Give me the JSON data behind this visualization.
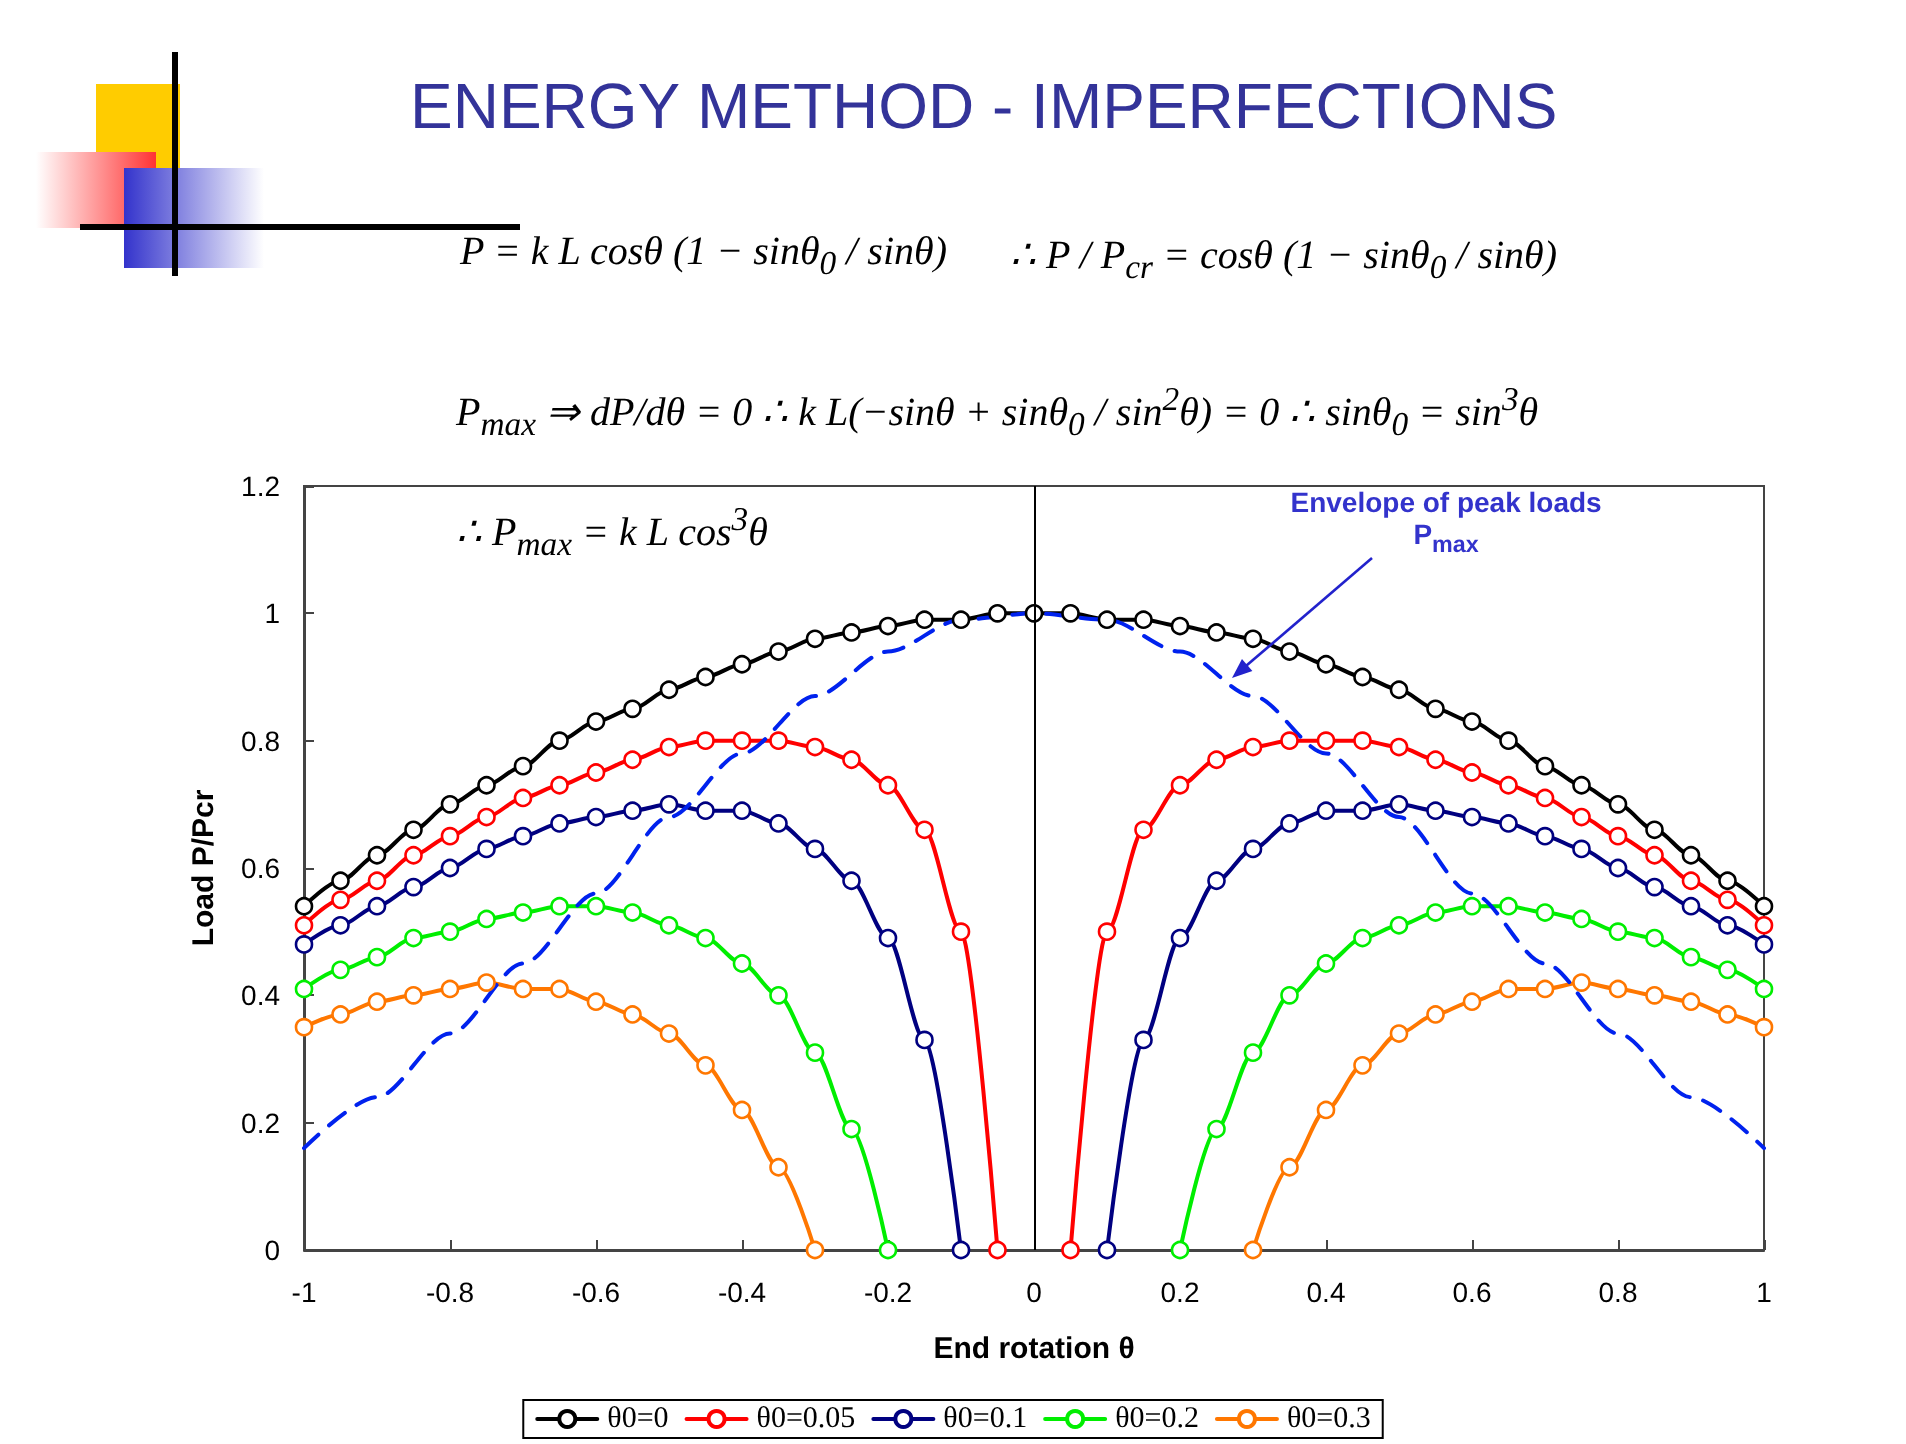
{
  "chart_data": {
    "type": "line",
    "title": "ENERGY METHOD - IMPERFECTIONS",
    "xlabel": "End rotation θ",
    "ylabel": "Load P/Pcr",
    "annotations": [
      "P = k L cosθ (1 − sinθ$_{0}$ / sinθ)",
      "∴ P / P$_{cr}$ = cosθ (1 − sinθ$_{0}$ / sinθ)",
      "P$_{max}$ ⇒ dP/dθ = 0    ∴ k L(−sinθ + sinθ$_{0}$ / sin$^{2}$θ) = 0    ∴ sinθ$_{0}$ = sin$^{3}$θ",
      "∴ P$_{max}$ = k L cos$^{3}$θ",
      {
        "text": "Envelope of peak loads P$_{max}$",
        "x": 0.27,
        "y": 0.9
      }
    ],
    "xlim": [
      -1,
      1
    ],
    "xticks": [
      -1,
      -0.8,
      -0.6,
      -0.4,
      -0.2,
      0,
      0.2,
      0.4,
      0.6,
      0.8,
      1
    ],
    "ylim": [
      0,
      1.2
    ],
    "yticks": [
      0,
      0.2,
      0.4,
      0.6,
      0.8,
      1,
      1.2
    ],
    "grid": false,
    "legend": "bottom",
    "marker": "circle",
    "line_style": "solid",
    "ref_lines": [
      {
        "axis": "x",
        "value": 0,
        "color": "#000000"
      }
    ],
    "series": [
      {
        "name": "θ0=0",
        "color": "#000000",
        "x": [
          -1,
          -0.95,
          -0.9,
          -0.85,
          -0.8,
          -0.75,
          -0.7,
          -0.65,
          -0.6,
          -0.55,
          -0.5,
          -0.45,
          -0.4,
          -0.35,
          -0.3,
          -0.25,
          -0.2,
          -0.15,
          -0.1,
          -0.05,
          0,
          0.05,
          0.1,
          0.15,
          0.2,
          0.25,
          0.3,
          0.35,
          0.4,
          0.45,
          0.5,
          0.55,
          0.6,
          0.65,
          0.7,
          0.75,
          0.8,
          0.85,
          0.9,
          0.95,
          1
        ],
        "values": [
          0.54,
          0.58,
          0.62,
          0.66,
          0.7,
          0.73,
          0.76,
          0.8,
          0.83,
          0.85,
          0.88,
          0.9,
          0.92,
          0.94,
          0.96,
          0.97,
          0.98,
          0.99,
          0.99,
          1.0,
          1,
          1.0,
          0.99,
          0.99,
          0.98,
          0.97,
          0.96,
          0.94,
          0.92,
          0.9,
          0.88,
          0.85,
          0.83,
          0.8,
          0.76,
          0.73,
          0.7,
          0.66,
          0.62,
          0.58,
          0.54
        ]
      },
      {
        "name": "θ0=0.05",
        "color": "#ff0000",
        "x": [
          -1,
          -0.95,
          -0.9,
          -0.85,
          -0.8,
          -0.75,
          -0.7,
          -0.65,
          -0.6,
          -0.55,
          -0.5,
          -0.45,
          -0.4,
          -0.35,
          -0.3,
          -0.25,
          -0.2,
          -0.15,
          -0.1,
          -0.05,
          null,
          0.05,
          0.1,
          0.15,
          0.2,
          0.25,
          0.3,
          0.35,
          0.4,
          0.45,
          0.5,
          0.55,
          0.6,
          0.65,
          0.7,
          0.75,
          0.8,
          0.85,
          0.9,
          0.95,
          1
        ],
        "values": [
          0.51,
          0.55,
          0.58,
          0.62,
          0.65,
          0.68,
          0.71,
          0.73,
          0.75,
          0.77,
          0.79,
          0.8,
          0.8,
          0.8,
          0.79,
          0.77,
          0.73,
          0.66,
          0.5,
          0,
          null,
          0,
          0.5,
          0.66,
          0.73,
          0.77,
          0.79,
          0.8,
          0.8,
          0.8,
          0.79,
          0.77,
          0.75,
          0.73,
          0.71,
          0.68,
          0.65,
          0.62,
          0.58,
          0.55,
          0.51
        ]
      },
      {
        "name": "θ0=0.1",
        "color": "#000080",
        "x": [
          -1,
          -0.95,
          -0.9,
          -0.85,
          -0.8,
          -0.75,
          -0.7,
          -0.65,
          -0.6,
          -0.55,
          -0.5,
          -0.45,
          -0.4,
          -0.35,
          -0.3,
          -0.25,
          -0.2,
          -0.15,
          -0.1,
          null,
          0.1,
          0.15,
          0.2,
          0.25,
          0.3,
          0.35,
          0.4,
          0.45,
          0.5,
          0.55,
          0.6,
          0.65,
          0.7,
          0.75,
          0.8,
          0.85,
          0.9,
          0.95,
          1
        ],
        "values": [
          0.48,
          0.51,
          0.54,
          0.57,
          0.6,
          0.63,
          0.65,
          0.67,
          0.68,
          0.69,
          0.7,
          0.69,
          0.69,
          0.67,
          0.63,
          0.58,
          0.49,
          0.33,
          0,
          null,
          0,
          0.33,
          0.49,
          0.58,
          0.63,
          0.67,
          0.69,
          0.69,
          0.7,
          0.69,
          0.68,
          0.67,
          0.65,
          0.63,
          0.6,
          0.57,
          0.54,
          0.51,
          0.48
        ]
      },
      {
        "name": "θ0=0.2",
        "color": "#00ee00",
        "x": [
          -1,
          -0.95,
          -0.9,
          -0.85,
          -0.8,
          -0.75,
          -0.7,
          -0.65,
          -0.6,
          -0.55,
          -0.5,
          -0.45,
          -0.4,
          -0.35,
          -0.3,
          -0.25,
          -0.2,
          null,
          0.2,
          0.25,
          0.3,
          0.35,
          0.4,
          0.45,
          0.5,
          0.55,
          0.6,
          0.65,
          0.7,
          0.75,
          0.8,
          0.85,
          0.9,
          0.95,
          1
        ],
        "values": [
          0.41,
          0.44,
          0.46,
          0.49,
          0.5,
          0.52,
          0.53,
          0.54,
          0.54,
          0.53,
          0.51,
          0.49,
          0.45,
          0.4,
          0.31,
          0.19,
          0,
          null,
          0,
          0.19,
          0.31,
          0.4,
          0.45,
          0.49,
          0.51,
          0.53,
          0.54,
          0.54,
          0.53,
          0.52,
          0.5,
          0.49,
          0.46,
          0.44,
          0.41
        ]
      },
      {
        "name": "θ0=0.3",
        "color": "#ff7700",
        "x": [
          -1,
          -0.95,
          -0.9,
          -0.85,
          -0.8,
          -0.75,
          -0.7,
          -0.65,
          -0.6,
          -0.55,
          -0.5,
          -0.45,
          -0.4,
          -0.35,
          -0.3,
          null,
          0.3,
          0.35,
          0.4,
          0.45,
          0.5,
          0.55,
          0.6,
          0.65,
          0.7,
          0.75,
          0.8,
          0.85,
          0.9,
          0.95,
          1
        ],
        "values": [
          0.35,
          0.37,
          0.39,
          0.4,
          0.41,
          0.42,
          0.41,
          0.41,
          0.39,
          0.37,
          0.34,
          0.29,
          0.22,
          0.13,
          0,
          null,
          0,
          0.13,
          0.22,
          0.29,
          0.34,
          0.37,
          0.39,
          0.41,
          0.41,
          0.42,
          0.41,
          0.4,
          0.39,
          0.37,
          0.35
        ]
      },
      {
        "color": "#0022ee",
        "marker": "none",
        "line_style": "dashed",
        "x": [
          -1,
          -0.9,
          -0.8,
          -0.7,
          -0.6,
          -0.5,
          -0.4,
          -0.3,
          -0.2,
          -0.1,
          0,
          0.1,
          0.2,
          0.3,
          0.4,
          0.5,
          0.6,
          0.7,
          0.8,
          0.9,
          1
        ],
        "values": [
          0.16,
          0.24,
          0.34,
          0.45,
          0.56,
          0.68,
          0.78,
          0.87,
          0.94,
          0.99,
          1,
          0.99,
          0.94,
          0.87,
          0.78,
          0.68,
          0.56,
          0.45,
          0.34,
          0.24,
          0.16
        ]
      }
    ]
  }
}
